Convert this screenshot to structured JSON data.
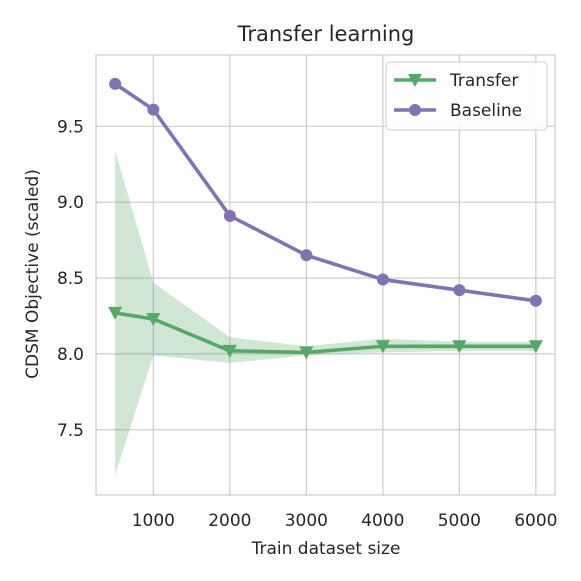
{
  "chart_data": {
    "type": "line",
    "title": "Transfer learning",
    "xlabel": "Train dataset size",
    "ylabel": "CDSM Objective (scaled)",
    "x": [
      500,
      1000,
      2000,
      3000,
      4000,
      5000,
      6000
    ],
    "xticks": [
      1000,
      2000,
      3000,
      4000,
      5000,
      6000
    ],
    "yticks": [
      7.5,
      8.0,
      8.5,
      9.0,
      9.5
    ],
    "xlim": [
      250,
      6250
    ],
    "ylim": [
      7.07,
      9.97
    ],
    "grid": true,
    "legend_position": "top-right",
    "series": [
      {
        "name": "Transfer",
        "values": [
          8.27,
          8.23,
          8.02,
          8.01,
          8.05,
          8.05,
          8.05
        ],
        "band_upper": [
          9.34,
          8.47,
          8.11,
          8.05,
          8.1,
          8.08,
          8.08
        ],
        "band_lower": [
          7.2,
          7.99,
          7.94,
          7.99,
          8.01,
          8.02,
          8.02
        ],
        "color": "#55a868",
        "band_color": "#55a868",
        "marker": "triangle-down"
      },
      {
        "name": "Baseline",
        "values": [
          9.78,
          9.61,
          8.91,
          8.65,
          8.49,
          8.42,
          8.35
        ],
        "color": "#8172b2",
        "marker": "circle"
      }
    ]
  }
}
